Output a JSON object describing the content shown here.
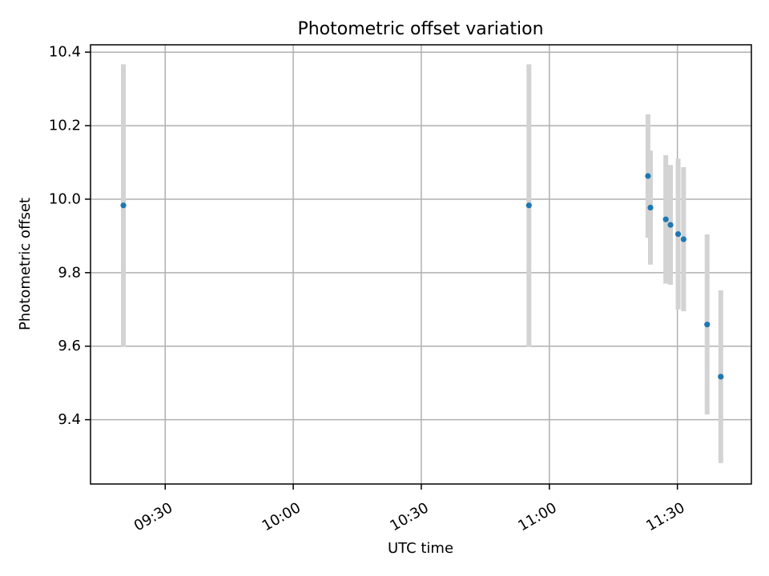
{
  "chart_data": {
    "type": "scatter",
    "title": "Photometric offset variation",
    "xlabel": "UTC time",
    "ylabel": "Photometric offset",
    "x_axis_type": "time",
    "xlim": [
      "09:12:30",
      "11:47:20"
    ],
    "ylim": [
      9.225,
      10.42
    ],
    "x_ticks": [
      "09:30",
      "10:00",
      "10:30",
      "11:00",
      "11:30"
    ],
    "y_ticks": [
      9.4,
      9.6,
      9.8,
      10.0,
      10.2,
      10.4
    ],
    "y_tick_labels": [
      "9.4",
      "9.6",
      "9.8",
      "10.0",
      "10.2",
      "10.4"
    ],
    "grid": true,
    "series": [
      {
        "marker_color": "#1f77b4",
        "errorbar_color": "#d3d3d3",
        "points": [
          {
            "x": "09:20:12",
            "y": 9.983,
            "yerr": 0.384
          },
          {
            "x": "10:55:13",
            "y": 9.983,
            "yerr": 0.384
          },
          {
            "x": "11:23:06",
            "y": 10.063,
            "yerr": 0.168
          },
          {
            "x": "11:23:41",
            "y": 9.977,
            "yerr": 0.155
          },
          {
            "x": "11:27:17",
            "y": 9.945,
            "yerr": 0.175
          },
          {
            "x": "11:28:23",
            "y": 9.93,
            "yerr": 0.163
          },
          {
            "x": "11:30:10",
            "y": 9.905,
            "yerr": 0.205
          },
          {
            "x": "11:31:27",
            "y": 9.891,
            "yerr": 0.196
          },
          {
            "x": "11:36:58",
            "y": 9.659,
            "yerr": 0.245
          },
          {
            "x": "11:40:10",
            "y": 9.517,
            "yerr": 0.235
          }
        ]
      }
    ]
  }
}
